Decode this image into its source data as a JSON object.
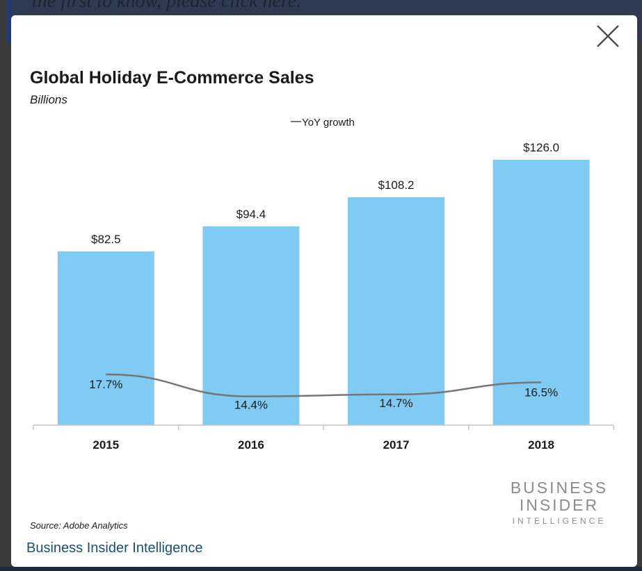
{
  "background": {
    "banner_text": "the first to know, please click here."
  },
  "modal": {
    "close_icon": "close-x-icon",
    "caption_link": "Business Insider Intelligence"
  },
  "chart": {
    "title": "Global Holiday E-Commerce Sales",
    "subtitle": "Billions",
    "legend_label": "YoY growth",
    "source": "Source: Adobe Analytics",
    "brand": {
      "line1": "BUSINESS",
      "line2": "INSIDER",
      "line3": "INTELLIGENCE"
    }
  },
  "colors": {
    "bar": "#7fcbf4",
    "growth_line": "#757575",
    "axis": "#c4c4c4",
    "link": "#1b4f72",
    "overlay": "#3b3b3b"
  },
  "chart_data": {
    "type": "bar",
    "title": "Global Holiday E-Commerce Sales",
    "subtitle": "Billions",
    "categories": [
      "2015",
      "2016",
      "2017",
      "2018"
    ],
    "series": [
      {
        "name": "",
        "values": [
          82.5,
          94.4,
          108.2,
          126.0
        ],
        "labels": [
          "$82.5",
          "$94.4",
          "$108.2",
          "$126.0"
        ]
      },
      {
        "name": "YoY growth",
        "type": "line",
        "values": [
          17.7,
          14.4,
          14.7,
          16.5
        ],
        "labels": [
          "17.7%",
          "14.4%",
          "14.7%",
          "16.5%"
        ]
      }
    ],
    "legend_position": "top-center",
    "grid": false,
    "source": "Source: Adobe Analytics"
  }
}
